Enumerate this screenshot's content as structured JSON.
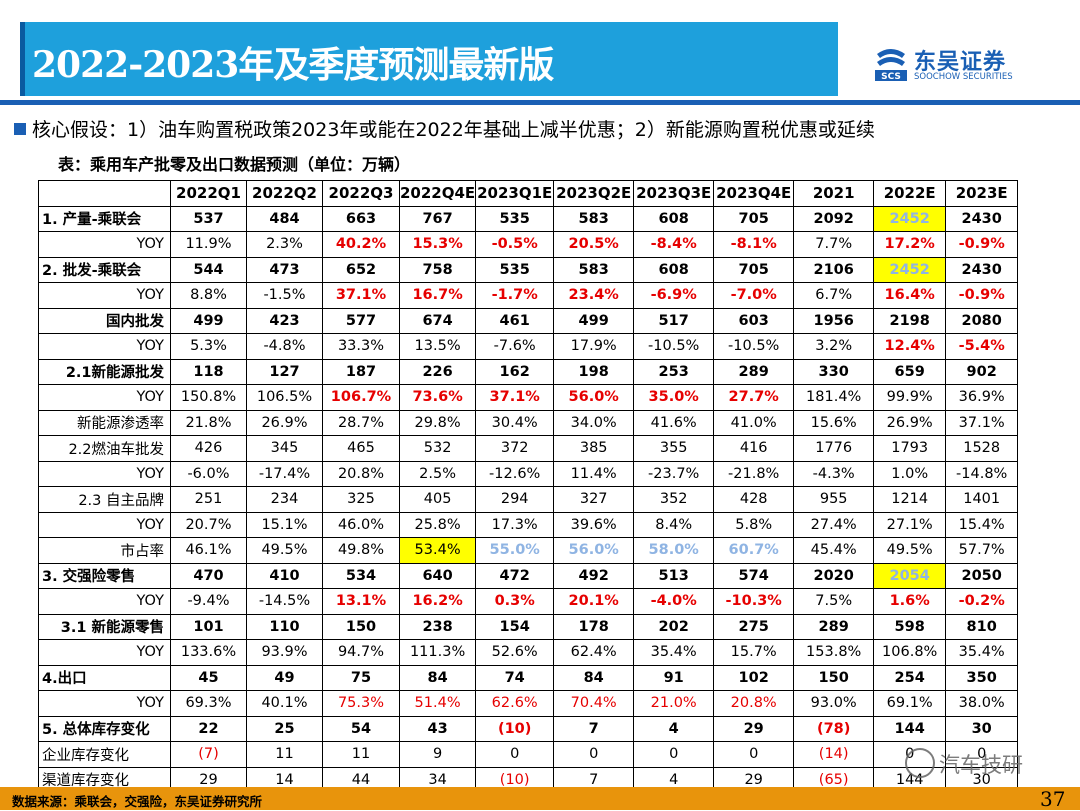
{
  "header": {
    "title": "2022-2023年及季度预测最新版",
    "logo_cn": "东吴证券",
    "logo_en": "SOOCHOW SECURITIES",
    "logo_mark_text": "SCS"
  },
  "assumption": "核心假设：1）油车购置税政策2023年或能在2022年基础上减半优惠；2）新能源购置税优惠或延续",
  "table_caption": "表：乘用车产批零及出口数据预测（单位：万辆）",
  "columns": [
    "",
    "2022Q1",
    "2022Q2",
    "2022Q3",
    "2022Q4E",
    "2023Q1E",
    "2023Q2E",
    "2023Q3E",
    "2023Q4E",
    "2021",
    "2022E",
    "2023E"
  ],
  "rows": [
    {
      "label": "1. 产量-乘联会",
      "align": "left",
      "bold": true,
      "cells": [
        "537",
        "484",
        "663",
        "767",
        "535",
        "583",
        "608",
        "705",
        "2092",
        "2452",
        "2430"
      ],
      "styles": {
        "9": "yellowblue"
      }
    },
    {
      "label": "YOY",
      "cells": [
        "11.9%",
        "2.3%",
        "40.2%",
        "15.3%",
        "-0.5%",
        "20.5%",
        "-8.4%",
        "-8.1%",
        "7.7%",
        "17.2%",
        "-0.9%"
      ],
      "styles": {
        "2": "red",
        "3": "red",
        "4": "red",
        "5": "red",
        "6": "red",
        "7": "red",
        "9": "red",
        "10": "red"
      }
    },
    {
      "label": "2. 批发-乘联会",
      "align": "left",
      "bold": true,
      "cells": [
        "544",
        "473",
        "652",
        "758",
        "535",
        "583",
        "608",
        "705",
        "2106",
        "2452",
        "2430"
      ],
      "styles": {
        "9": "yellowblue"
      }
    },
    {
      "label": "YOY",
      "cells": [
        "8.8%",
        "-1.5%",
        "37.1%",
        "16.7%",
        "-1.7%",
        "23.4%",
        "-6.9%",
        "-7.0%",
        "6.7%",
        "16.4%",
        "-0.9%"
      ],
      "styles": {
        "2": "red",
        "3": "red",
        "4": "red",
        "5": "red",
        "6": "red",
        "7": "red",
        "9": "red",
        "10": "red"
      }
    },
    {
      "label": "国内批发",
      "bold": true,
      "cells": [
        "499",
        "423",
        "577",
        "674",
        "461",
        "499",
        "517",
        "603",
        "1956",
        "2198",
        "2080"
      ],
      "styles": {}
    },
    {
      "label": "YOY",
      "cells": [
        "5.3%",
        "-4.8%",
        "33.3%",
        "13.5%",
        "-7.6%",
        "17.9%",
        "-10.5%",
        "-10.5%",
        "3.2%",
        "12.4%",
        "-5.4%"
      ],
      "styles": {
        "9": "red",
        "10": "red"
      }
    },
    {
      "label": "2.1新能源批发",
      "bold": true,
      "cells": [
        "118",
        "127",
        "187",
        "226",
        "162",
        "198",
        "253",
        "289",
        "330",
        "659",
        "902"
      ],
      "styles": {}
    },
    {
      "label": "YOY",
      "cells": [
        "150.8%",
        "106.5%",
        "106.7%",
        "73.6%",
        "37.1%",
        "56.0%",
        "35.0%",
        "27.7%",
        "181.4%",
        "99.9%",
        "36.9%"
      ],
      "styles": {
        "2": "red",
        "3": "red",
        "4": "red",
        "5": "red",
        "6": "red",
        "7": "red"
      }
    },
    {
      "label": "新能源渗透率",
      "cells": [
        "21.8%",
        "26.9%",
        "28.7%",
        "29.8%",
        "30.4%",
        "34.0%",
        "41.6%",
        "41.0%",
        "15.6%",
        "26.9%",
        "37.1%"
      ],
      "styles": {}
    },
    {
      "label": "2.2燃油车批发",
      "cells": [
        "426",
        "345",
        "465",
        "532",
        "372",
        "385",
        "355",
        "416",
        "1776",
        "1793",
        "1528"
      ],
      "styles": {}
    },
    {
      "label": "YOY",
      "cells": [
        "-6.0%",
        "-17.4%",
        "20.8%",
        "2.5%",
        "-12.6%",
        "11.4%",
        "-23.7%",
        "-21.8%",
        "-4.3%",
        "1.0%",
        "-14.8%"
      ],
      "styles": {}
    },
    {
      "label": "2.3 自主品牌",
      "cells": [
        "251",
        "234",
        "325",
        "405",
        "294",
        "327",
        "352",
        "428",
        "955",
        "1214",
        "1401"
      ],
      "styles": {}
    },
    {
      "label": "YOY",
      "cells": [
        "20.7%",
        "15.1%",
        "46.0%",
        "25.8%",
        "17.3%",
        "39.6%",
        "8.4%",
        "5.8%",
        "27.4%",
        "27.1%",
        "15.4%"
      ],
      "styles": {}
    },
    {
      "label": "市占率",
      "cells": [
        "46.1%",
        "49.5%",
        "49.8%",
        "53.4%",
        "55.0%",
        "56.0%",
        "58.0%",
        "60.7%",
        "45.4%",
        "49.5%",
        "57.7%"
      ],
      "styles": {
        "3": "yellow",
        "4": "blue",
        "5": "blue",
        "6": "blue",
        "7": "blue"
      }
    },
    {
      "label": "3. 交强险零售",
      "align": "left",
      "bold": true,
      "cells": [
        "470",
        "410",
        "534",
        "640",
        "472",
        "492",
        "513",
        "574",
        "2020",
        "2054",
        "2050"
      ],
      "styles": {
        "9": "yellowblue"
      }
    },
    {
      "label": "YOY",
      "cells": [
        "-9.4%",
        "-14.5%",
        "13.1%",
        "16.2%",
        "0.3%",
        "20.1%",
        "-4.0%",
        "-10.3%",
        "7.5%",
        "1.6%",
        "-0.2%"
      ],
      "styles": {
        "2": "red",
        "3": "red",
        "4": "red",
        "5": "red",
        "6": "red",
        "7": "red",
        "9": "red",
        "10": "red"
      }
    },
    {
      "label": "3.1 新能源零售",
      "bold": true,
      "cells": [
        "101",
        "110",
        "150",
        "238",
        "154",
        "178",
        "202",
        "275",
        "289",
        "598",
        "810"
      ],
      "styles": {}
    },
    {
      "label": "YOY",
      "cells": [
        "133.6%",
        "93.9%",
        "94.7%",
        "111.3%",
        "52.6%",
        "62.4%",
        "35.4%",
        "15.7%",
        "153.8%",
        "106.8%",
        "35.4%"
      ],
      "styles": {}
    },
    {
      "label": "4.出口",
      "align": "left",
      "bold": true,
      "cells": [
        "45",
        "49",
        "75",
        "84",
        "74",
        "84",
        "91",
        "102",
        "150",
        "254",
        "350"
      ],
      "styles": {}
    },
    {
      "label": "YOY",
      "cells": [
        "69.3%",
        "40.1%",
        "75.3%",
        "51.4%",
        "62.6%",
        "70.4%",
        "21.0%",
        "20.8%",
        "93.0%",
        "69.1%",
        "38.0%"
      ],
      "styles": {
        "2": "redn",
        "3": "redn",
        "4": "redn",
        "5": "redn",
        "6": "redn",
        "7": "redn"
      }
    },
    {
      "label": "5. 总体库存变化",
      "align": "left",
      "bold": true,
      "cells": [
        "22",
        "25",
        "54",
        "43",
        "(10)",
        "7",
        "4",
        "29",
        "(78)",
        "144",
        "30"
      ],
      "styles": {
        "4": "redb",
        "8": "redb"
      }
    },
    {
      "label": "企业库存变化",
      "align": "left",
      "cells": [
        "(7)",
        "11",
        "11",
        "9",
        "0",
        "0",
        "0",
        "0",
        "(14)",
        "0",
        "0"
      ],
      "styles": {
        "0": "redn",
        "8": "redn"
      }
    },
    {
      "label": "渠道库存变化",
      "align": "left",
      "cells": [
        "29",
        "14",
        "44",
        "34",
        "(10)",
        "7",
        "4",
        "29",
        "(65)",
        "144",
        "30"
      ],
      "styles": {
        "4": "redn",
        "8": "redn"
      }
    }
  ],
  "footer": {
    "source": "数据来源：乘联会，交强险，东吴证券研究所",
    "page_number": "37",
    "watermark": "汽车技研"
  },
  "colors": {
    "title_bar": "#1ea0dc",
    "brand": "#1a5fb4",
    "footer_bar": "#e8940c",
    "highlight_red": "#e60000",
    "highlight_blue": "#8fb4e3",
    "highlight_yellow": "#ffff00"
  }
}
